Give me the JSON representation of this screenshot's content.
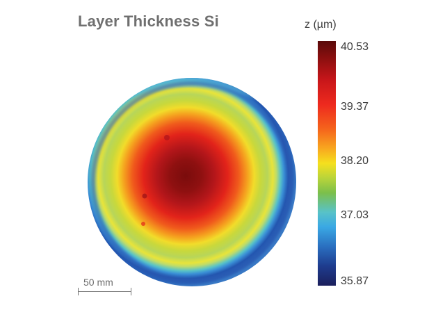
{
  "chart_data": {
    "type": "heatmap",
    "title": "Layer Thickness Si",
    "colorbar": {
      "label": "z (µm)",
      "min": 35.87,
      "max": 40.53,
      "ticks": [
        "40.53",
        "39.37",
        "38.20",
        "37.03",
        "35.87"
      ],
      "tick_values": [
        40.53,
        39.37,
        38.2,
        37.03,
        35.87
      ]
    },
    "scale_bar": {
      "label": "50 mm"
    },
    "profile": {
      "description_values": {
        "center": 40.45,
        "r_0_15": 40.2,
        "r_0_30": 39.7,
        "r_0_45": 39.0,
        "r_0_60": 38.4,
        "r_0_72": 38.0,
        "r_0_80": 38.6,
        "r_0_86": 37.9,
        "r_0_92": 36.9,
        "edge": 36.2
      }
    },
    "colors": {
      "dark_red": "#5a0a0a",
      "red": "#e2231a",
      "orange": "#f5841f",
      "yellow": "#f5e01e",
      "green": "#8dc63f",
      "cyan": "#4fb8e0",
      "blue": "#2a5fb0",
      "navy": "#1b1f5c"
    }
  }
}
